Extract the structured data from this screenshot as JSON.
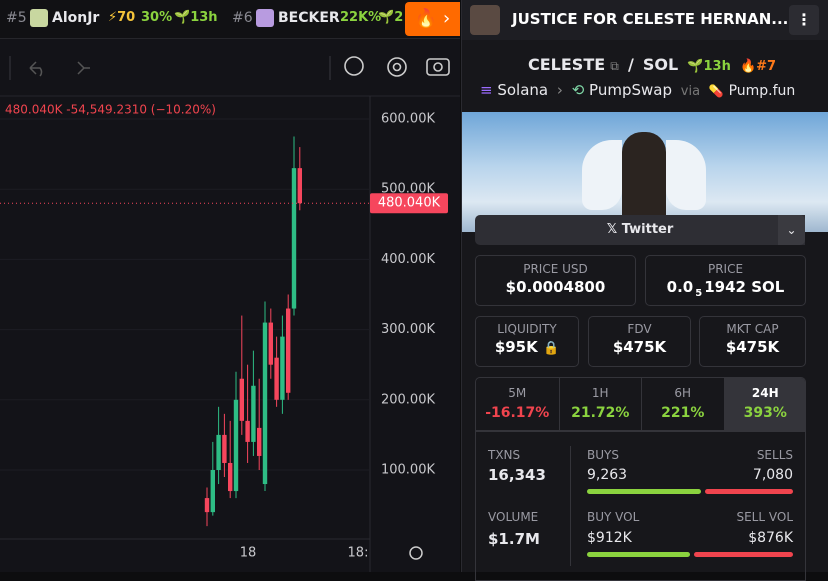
{
  "top_bar": {
    "trending": [
      {
        "rank": "#5",
        "name": "AlonJr",
        "score": "⚡70",
        "change": "30%",
        "age": "13h"
      },
      {
        "rank": "#6",
        "name": "BECKER",
        "change": "22K%",
        "age": "2"
      }
    ]
  },
  "header": {
    "title": "JUSTICE FOR CELESTE HERNAN..."
  },
  "chart": {
    "type": "candlestick",
    "change_text": "480.040K  -54,549.2310 (−10.20%)",
    "last_price": {
      "value": 480040,
      "label": "480.040K"
    },
    "ylim": [
      0,
      620000
    ],
    "yticks": [
      {
        "value": 100000,
        "label": "100.00K"
      },
      {
        "value": 200000,
        "label": "200.00K"
      },
      {
        "value": 300000,
        "label": "300.00K"
      },
      {
        "value": 400000,
        "label": "400.00K"
      },
      {
        "value": 500000,
        "label": "500.00K"
      },
      {
        "value": 600000,
        "label": "600.00K"
      }
    ],
    "x_labels": [
      "18",
      "18:"
    ],
    "candles": [
      {
        "open": 60000,
        "high": 75000,
        "low": 20000,
        "close": 40000
      },
      {
        "open": 40000,
        "high": 140000,
        "low": 35000,
        "close": 100000
      },
      {
        "open": 100000,
        "high": 190000,
        "low": 80000,
        "close": 150000
      },
      {
        "open": 150000,
        "high": 180000,
        "low": 90000,
        "close": 110000
      },
      {
        "open": 110000,
        "high": 170000,
        "low": 60000,
        "close": 70000
      },
      {
        "open": 70000,
        "high": 240000,
        "low": 60000,
        "close": 200000
      },
      {
        "open": 230000,
        "high": 320000,
        "low": 150000,
        "close": 170000
      },
      {
        "open": 170000,
        "high": 250000,
        "low": 110000,
        "close": 140000
      },
      {
        "open": 140000,
        "high": 270000,
        "low": 120000,
        "close": 220000
      },
      {
        "open": 160000,
        "high": 230000,
        "low": 100000,
        "close": 120000
      },
      {
        "open": 80000,
        "high": 340000,
        "low": 70000,
        "close": 310000
      },
      {
        "open": 310000,
        "high": 330000,
        "low": 230000,
        "close": 250000
      },
      {
        "open": 260000,
        "high": 290000,
        "low": 190000,
        "close": 200000
      },
      {
        "open": 200000,
        "high": 320000,
        "low": 180000,
        "close": 290000
      },
      {
        "open": 330000,
        "high": 350000,
        "low": 200000,
        "close": 210000
      },
      {
        "open": 330000,
        "high": 575000,
        "low": 320000,
        "close": 530000
      },
      {
        "open": 530000,
        "high": 560000,
        "low": 470000,
        "close": 480040
      }
    ],
    "up_color": "#2ebd85",
    "down_color": "#f6465d"
  },
  "pair": {
    "base": "CELESTE",
    "separator": "/",
    "quote": "SOL",
    "age": "13h",
    "rank": "#7"
  },
  "route": {
    "chain": "Solana",
    "dex": "PumpSwap",
    "via": "via",
    "launchpad": "Pump.fun"
  },
  "social": {
    "twitter": "Twitter"
  },
  "prices": {
    "usd": {
      "label": "PRICE USD",
      "value": "$0.0004800"
    },
    "native": {
      "label": "PRICE",
      "lead": "0.0",
      "zeros": "5",
      "tail": "1942 SOL"
    }
  },
  "metrics": [
    {
      "label": "LIQUIDITY",
      "value": "$95K"
    },
    {
      "label": "FDV",
      "value": "$475K"
    },
    {
      "label": "MKT CAP",
      "value": "$475K"
    }
  ],
  "timeframes": [
    {
      "label": "5M",
      "change": "-16.17%"
    },
    {
      "label": "1H",
      "change": "21.72%"
    },
    {
      "label": "6H",
      "change": "221%"
    },
    {
      "label": "24H",
      "change": "393%"
    }
  ],
  "stats": {
    "txns": {
      "label": "TXNS",
      "value": "16,343"
    },
    "buys": {
      "label": "BUYS",
      "value": "9,263",
      "number": 9263
    },
    "sells": {
      "label": "SELLS",
      "value": "7,080",
      "number": 7080
    },
    "volume": {
      "label": "VOLUME",
      "value": "$1.7M"
    },
    "buy_vol": {
      "label": "BUY VOL",
      "value": "$912K",
      "number": 912000
    },
    "sell_vol": {
      "label": "SELL VOL",
      "value": "$876K",
      "number": 876000
    }
  }
}
